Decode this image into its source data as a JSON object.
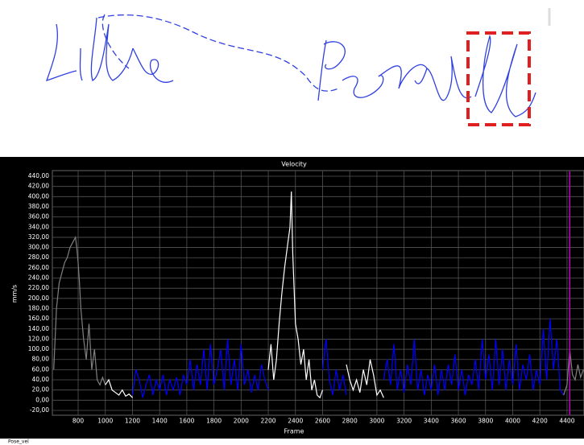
{
  "chart_data": {
    "type": "line",
    "title": "Velocity",
    "xlabel": "Frame",
    "ylabel": "mm/s",
    "footer": "Pose_vel",
    "xlim": [
      610,
      4525
    ],
    "ylim": [
      -30,
      450
    ],
    "grid": true,
    "cursor_x": 4420,
    "cursor_color": "#c000c0",
    "xticks": [
      800,
      1000,
      1200,
      1400,
      1600,
      1800,
      2000,
      2200,
      2400,
      2600,
      2800,
      3000,
      3200,
      3400,
      3600,
      3800,
      4000,
      4200,
      4400
    ],
    "yticks": [
      {
        "value": 440,
        "label": "440,00"
      },
      {
        "value": 420,
        "label": "420,00"
      },
      {
        "value": 400,
        "label": "400,00"
      },
      {
        "value": 380,
        "label": "380,00"
      },
      {
        "value": 360,
        "label": "360,00"
      },
      {
        "value": 340,
        "label": "340,00"
      },
      {
        "value": 320,
        "label": "320,00"
      },
      {
        "value": 300,
        "label": "300,00"
      },
      {
        "value": 280,
        "label": "280,00"
      },
      {
        "value": 260,
        "label": "260,00"
      },
      {
        "value": 240,
        "label": "240,00"
      },
      {
        "value": 220,
        "label": "220,00"
      },
      {
        "value": 200,
        "label": "200,00"
      },
      {
        "value": 180,
        "label": "180,00"
      },
      {
        "value": 160,
        "label": "160,00"
      },
      {
        "value": 140,
        "label": "140,00"
      },
      {
        "value": 120,
        "label": "120,00"
      },
      {
        "value": 100,
        "label": "100,00"
      },
      {
        "value": 80,
        "label": "80,00"
      },
      {
        "value": 60,
        "label": "60,00"
      },
      {
        "value": 40,
        "label": "40,00"
      },
      {
        "value": 20,
        "label": "20,00"
      },
      {
        "value": 0,
        "label": "0,00"
      },
      {
        "value": -20,
        "label": "-20,00"
      }
    ],
    "series": [
      {
        "color": "#808080",
        "x": [
          620,
          640,
          660,
          680,
          700,
          720,
          740,
          760,
          780,
          790,
          800,
          810,
          820,
          840,
          860,
          880,
          900,
          920,
          940,
          960,
          980,
          1000
        ],
        "values": [
          60,
          180,
          230,
          250,
          270,
          280,
          300,
          310,
          320,
          300,
          270,
          230,
          180,
          120,
          80,
          150,
          60,
          100,
          40,
          30,
          45,
          30
        ]
      },
      {
        "color": "#ffffff",
        "x": [
          1000,
          1025,
          1050,
          1075,
          1100,
          1125,
          1150,
          1175,
          1200
        ],
        "values": [
          30,
          40,
          20,
          15,
          10,
          20,
          8,
          12,
          5
        ]
      },
      {
        "color": "#0000ff",
        "x": [
          1200,
          1225,
          1250,
          1275,
          1300,
          1325,
          1350,
          1375,
          1400,
          1425,
          1450,
          1475,
          1500,
          1525,
          1550,
          1575,
          1600,
          1625,
          1650,
          1675,
          1700,
          1725,
          1750,
          1775,
          1800,
          1825,
          1850,
          1875,
          1900,
          1925,
          1950,
          1975,
          2000,
          2025,
          2050,
          2075,
          2100,
          2125,
          2150,
          2175,
          2200
        ],
        "values": [
          10,
          60,
          40,
          5,
          30,
          50,
          10,
          40,
          20,
          50,
          10,
          40,
          20,
          45,
          10,
          50,
          30,
          80,
          20,
          70,
          30,
          100,
          20,
          110,
          30,
          60,
          100,
          20,
          120,
          30,
          80,
          20,
          110,
          30,
          60,
          15,
          50,
          20,
          70,
          40,
          20
        ]
      },
      {
        "color": "#ffffff",
        "x": [
          2200,
          2220,
          2240,
          2260,
          2280,
          2300,
          2320,
          2340,
          2360,
          2370,
          2380,
          2400,
          2420,
          2440,
          2460,
          2480,
          2500,
          2520,
          2540,
          2560,
          2580,
          2600
        ],
        "values": [
          60,
          110,
          40,
          80,
          150,
          210,
          260,
          300,
          340,
          410,
          290,
          150,
          120,
          70,
          100,
          40,
          80,
          20,
          40,
          10,
          5,
          20
        ]
      },
      {
        "color": "#0000ff",
        "x": [
          2600,
          2625,
          2650,
          2675,
          2700,
          2725,
          2750,
          2775
        ],
        "values": [
          60,
          120,
          40,
          10,
          60,
          20,
          50,
          10
        ]
      },
      {
        "color": "#ffffff",
        "x": [
          2775,
          2800,
          2825,
          2850,
          2875,
          2900,
          2925,
          2950,
          2975,
          3000,
          3025,
          3050
        ],
        "values": [
          70,
          40,
          20,
          40,
          15,
          60,
          30,
          80,
          50,
          10,
          20,
          5
        ]
      },
      {
        "color": "#0000ff",
        "x": [
          3050,
          3075,
          3100,
          3125,
          3150,
          3175,
          3200,
          3225,
          3250,
          3275,
          3300,
          3325,
          3350,
          3375,
          3400,
          3425,
          3450,
          3475,
          3500,
          3525,
          3550,
          3575,
          3600,
          3625,
          3650,
          3675,
          3700,
          3725,
          3750,
          3775,
          3800,
          3825,
          3850,
          3875,
          3900,
          3925,
          3950,
          3975,
          4000,
          4025,
          4050,
          4075,
          4100,
          4125,
          4150,
          4175,
          4200,
          4225,
          4250,
          4275,
          4300,
          4325,
          4350,
          4375
        ],
        "values": [
          40,
          80,
          30,
          110,
          20,
          60,
          15,
          70,
          30,
          120,
          20,
          60,
          10,
          50,
          20,
          70,
          10,
          60,
          20,
          70,
          30,
          90,
          20,
          60,
          10,
          50,
          30,
          80,
          20,
          120,
          40,
          90,
          20,
          120,
          30,
          100,
          20,
          80,
          30,
          110,
          20,
          70,
          40,
          90,
          20,
          60,
          30,
          140,
          40,
          160,
          60,
          120,
          20,
          10
        ]
      },
      {
        "color": "#808080",
        "x": [
          4375,
          4400,
          4420,
          4440,
          4460,
          4480,
          4500,
          4520
        ],
        "values": [
          10,
          30,
          100,
          50,
          40,
          70,
          45,
          60
        ]
      }
    ]
  }
}
